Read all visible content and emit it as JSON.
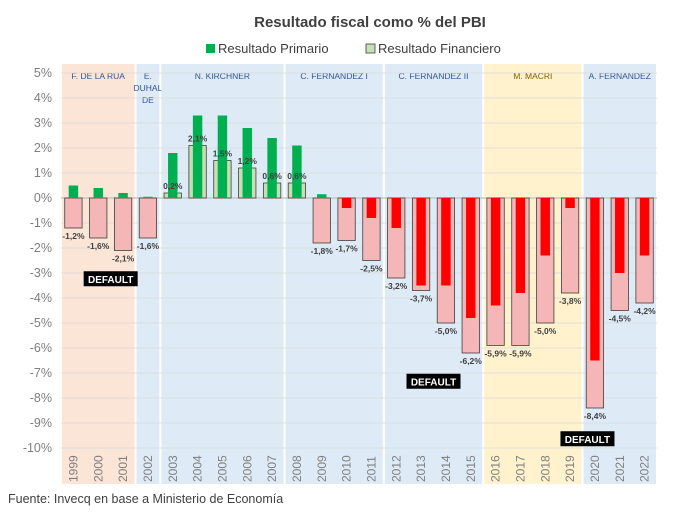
{
  "chart_data": {
    "type": "bar",
    "title": "Resultado fiscal como % del PBI",
    "source": "Fuente: Invecq en base a Ministerio de Economía",
    "ylim": [
      -10,
      5
    ],
    "yticks": [
      "5%",
      "4%",
      "3%",
      "2%",
      "1%",
      "0%",
      "-1%",
      "-2%",
      "-3%",
      "-4%",
      "-5%",
      "-6%",
      "-7%",
      "-8%",
      "-9%",
      "-10%"
    ],
    "categories": [
      "1999",
      "2000",
      "2001",
      "2002",
      "2003",
      "2004",
      "2005",
      "2006",
      "2007",
      "2008",
      "2009",
      "2010",
      "2011",
      "2012",
      "2013",
      "2014",
      "2015",
      "2016",
      "2017",
      "2018",
      "2019",
      "2020",
      "2021",
      "2022"
    ],
    "series": [
      {
        "name": "Resultado Primario",
        "values": [
          0.5,
          0.4,
          0.2,
          0.05,
          1.8,
          3.3,
          3.3,
          2.8,
          2.4,
          2.1,
          0.15,
          -0.4,
          -0.8,
          -1.2,
          -3.5,
          -3.5,
          -4.8,
          -4.3,
          -3.8,
          -2.3,
          -0.4,
          -6.5,
          -3.0,
          -2.3
        ]
      },
      {
        "name": "Resultado Financiero",
        "values": [
          -1.2,
          -1.6,
          -2.1,
          -1.6,
          0.2,
          2.1,
          1.5,
          1.2,
          0.6,
          0.6,
          -1.8,
          -1.7,
          -2.5,
          -3.2,
          -3.7,
          -5.0,
          -6.2,
          -5.9,
          -5.9,
          -5.0,
          -3.8,
          -8.4,
          -4.5,
          -4.2
        ]
      }
    ],
    "data_labels": [
      "-1,2%",
      "-1,6%",
      "-2,1%",
      "-1,6%",
      "0,2%",
      "2,1%",
      "1,5%",
      "1,2%",
      "0,6%",
      "0,6%",
      "-1,8%",
      "-1,7%",
      "-2,5%",
      "-3,2%",
      "-3,7%",
      "-5,0%",
      "-6,2%",
      "-5,9%",
      "-5,9%",
      "-5,0%",
      "-3,8%",
      "-8,4%",
      "-4,5%",
      "-4,2%"
    ],
    "eras": [
      {
        "label": [
          "F. DE LA RUA"
        ],
        "start": 0,
        "end": 2,
        "color": "#fbe5d6"
      },
      {
        "label": [
          "E.",
          "DUHAL",
          "DE"
        ],
        "start": 3,
        "end": 3,
        "color": "#deebf7"
      },
      {
        "label": [
          "N. KIRCHNER"
        ],
        "start": 4,
        "end": 8,
        "color": "#deebf7"
      },
      {
        "label": [
          "C. FERNANDEZ I"
        ],
        "start": 9,
        "end": 12,
        "color": "#deebf7"
      },
      {
        "label": [
          "C. FERNANDEZ II"
        ],
        "start": 13,
        "end": 16,
        "color": "#deebf7"
      },
      {
        "label": [
          "M. MACRI"
        ],
        "start": 17,
        "end": 20,
        "color": "#fff2cc"
      },
      {
        "label": [
          "A. FERNANDEZ"
        ],
        "start": 21,
        "end": 23,
        "color": "#deebf7"
      }
    ],
    "annotations": [
      {
        "text": "DEFAULT",
        "year_index": 1.5,
        "value": -3.25
      },
      {
        "text": "DEFAULT",
        "year_index": 14.5,
        "value": -7.35
      },
      {
        "text": "DEFAULT",
        "year_index": 20.7,
        "value": -9.65
      }
    ],
    "colors": {
      "primario": "#00b050",
      "financiero_pos": "#c5e0b4",
      "primario_neg": "#ff0000",
      "financiero_neg": "#f4b6b6"
    }
  }
}
